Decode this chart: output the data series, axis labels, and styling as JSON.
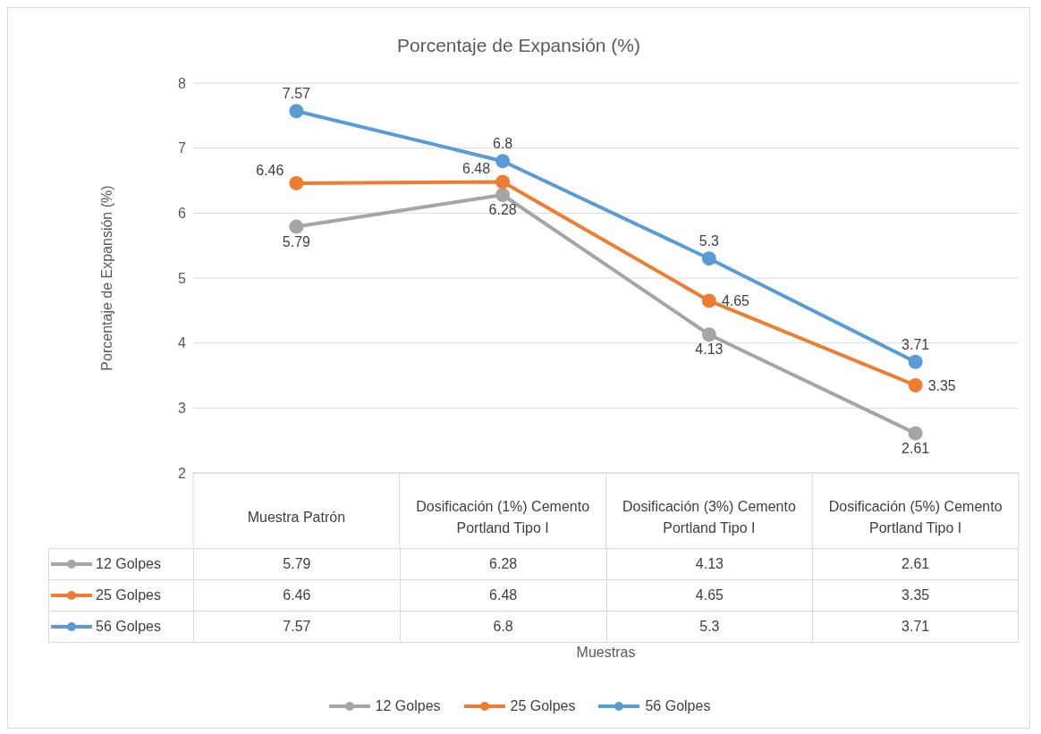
{
  "chart_data": {
    "type": "line",
    "title": "Porcentaje de Expansión (%)",
    "ylabel": "Porcentaje de Expansión (%)",
    "categories": [
      "Muestra Patrón",
      "Dosificación (1%) Cemento Portland Tipo I",
      "Dosificación (3%) Cemento Portland Tipo I",
      "Dosificación (5%) Cemento Portland Tipo I"
    ],
    "series": [
      {
        "name": "12 Golpes",
        "color": "#a5a5a5",
        "values": [
          5.79,
          6.28,
          4.13,
          2.61
        ]
      },
      {
        "name": "25 Golpes",
        "color": "#ed7d31",
        "values": [
          6.46,
          6.48,
          4.65,
          3.35
        ]
      },
      {
        "name": "56 Golpes",
        "color": "#5b9bd5",
        "values": [
          7.57,
          6.8,
          5.3,
          3.71
        ]
      }
    ],
    "annotations": [
      "Muestras",
      {
        "text": "5.79",
        "x": "Muestra Patrón",
        "y": 5.79
      },
      {
        "text": "6.28",
        "x": "Dosificación (1%) Cemento Portland Tipo I",
        "y": 6.28
      },
      {
        "text": "4.13",
        "x": "Dosificación (3%) Cemento Portland Tipo I",
        "y": 4.13
      },
      {
        "text": "2.61",
        "x": "Dosificación (5%) Cemento Portland Tipo I",
        "y": 2.61
      },
      {
        "text": "6.46",
        "x": "Muestra Patrón",
        "y": 6.46
      },
      {
        "text": "6.48",
        "x": "Dosificación (1%) Cemento Portland Tipo I",
        "y": 6.48
      },
      {
        "text": "4.65",
        "x": "Dosificación (3%) Cemento Portland Tipo I",
        "y": 4.65
      },
      {
        "text": "3.35",
        "x": "Dosificación (5%) Cemento Portland Tipo I",
        "y": 3.35
      },
      {
        "text": "7.57",
        "x": "Muestra Patrón",
        "y": 7.57
      },
      {
        "text": "6.8",
        "x": "Dosificación (1%) Cemento Portland Tipo I",
        "y": 6.8
      },
      {
        "text": "5.3",
        "x": "Dosificación (3%) Cemento Portland Tipo I",
        "y": 5.3
      },
      {
        "text": "3.71",
        "x": "Dosificación (5%) Cemento Portland Tipo I",
        "y": 3.71
      }
    ],
    "ylim": [
      2,
      8
    ],
    "yticks": [
      2,
      3,
      4,
      5,
      6,
      7,
      8
    ],
    "grid": "y",
    "legend": "bottom",
    "marker": "circle",
    "line_style": "solid",
    "data_labels": true
  }
}
